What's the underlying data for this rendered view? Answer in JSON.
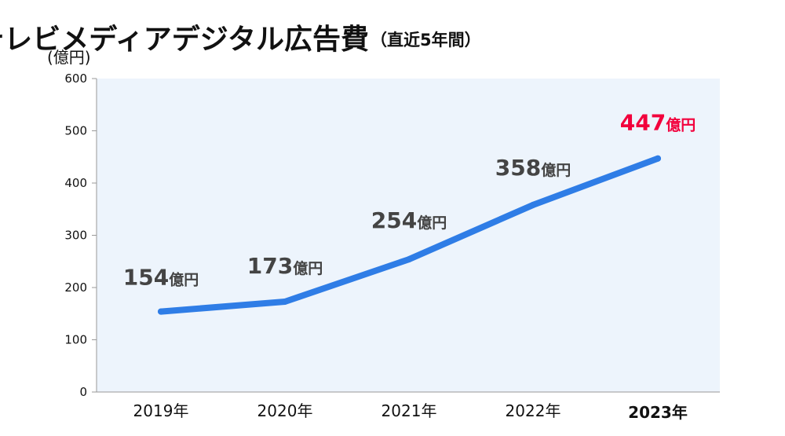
{
  "colors": {
    "line": "#2f7de6",
    "plot_bg": "#edf4fc",
    "axis": "#999999",
    "highlight": "#f2003c",
    "label": "#444444"
  },
  "chart_data": {
    "type": "line",
    "title": "テレビメディアデジタル広告費",
    "subtitle": "（直近5年間）",
    "ylabel": "(億円)",
    "ylim": [
      0,
      600
    ],
    "yticks": [
      "0",
      "100",
      "200",
      "300",
      "400",
      "500",
      "600"
    ],
    "grid": false,
    "highlight_index": 4,
    "categories": [
      {
        "year": "2019",
        "suffix": "年"
      },
      {
        "year": "2020",
        "suffix": "年"
      },
      {
        "year": "2021",
        "suffix": "年"
      },
      {
        "year": "2022",
        "suffix": "年"
      },
      {
        "year": "2023",
        "suffix": "年"
      }
    ],
    "values": [
      154,
      173,
      254,
      358,
      447
    ],
    "data_labels": [
      {
        "num": "154",
        "unit": "億円"
      },
      {
        "num": "173",
        "unit": "億円"
      },
      {
        "num": "254",
        "unit": "億円"
      },
      {
        "num": "358",
        "unit": "億円"
      },
      {
        "num": "447",
        "unit": "億円"
      }
    ]
  }
}
